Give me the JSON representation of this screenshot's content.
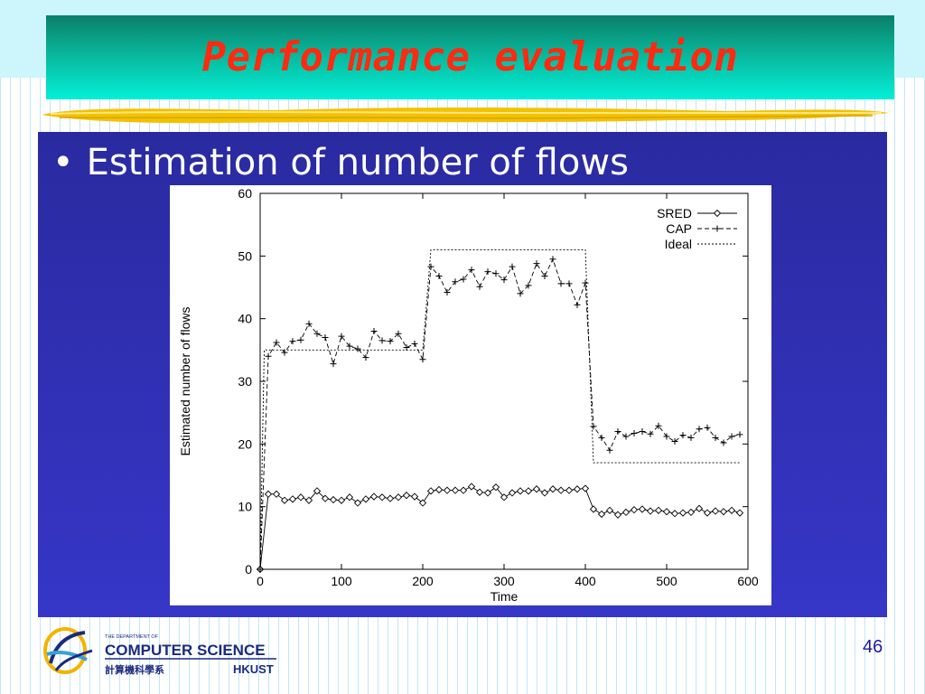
{
  "slide": {
    "title": "Performance evaluation",
    "bullet": "Estimation of number of flows",
    "page_number": "46"
  },
  "logo": {
    "line1": "THE DEPARTMENT OF",
    "line2": "COMPUTER SCIENCE",
    "line3": "計算機科學系",
    "line4": "HKUST"
  },
  "colors": {
    "title_text": "#ff2a10",
    "title_bar_top": "#0a7f6a",
    "title_bar_bottom": "#04f0d8",
    "content_bg": "#3030b8",
    "brush": "#f2c200"
  },
  "chart_data": {
    "type": "line",
    "xlabel": "Time",
    "ylabel": "Estimated number of flows",
    "xlim": [
      0,
      600
    ],
    "ylim": [
      0,
      60
    ],
    "xticks": [
      0,
      100,
      200,
      300,
      400,
      500,
      600
    ],
    "yticks": [
      0,
      10,
      20,
      30,
      40,
      50,
      60
    ],
    "grid": false,
    "legend_position": "top-right",
    "series": [
      {
        "name": "SRED",
        "marker": "diamond",
        "line": "solid",
        "x": [
          0,
          10,
          20,
          30,
          40,
          50,
          60,
          70,
          80,
          90,
          100,
          110,
          120,
          130,
          140,
          150,
          160,
          170,
          180,
          190,
          200,
          210,
          220,
          230,
          240,
          250,
          260,
          270,
          280,
          290,
          300,
          310,
          320,
          330,
          340,
          350,
          360,
          370,
          380,
          390,
          400,
          410,
          420,
          430,
          440,
          450,
          460,
          470,
          480,
          490,
          500,
          510,
          520,
          530,
          540,
          550,
          560,
          570,
          580,
          590
        ],
        "y": [
          0,
          12,
          12,
          11,
          11.2,
          11.5,
          11,
          12.5,
          11.3,
          11.1,
          11,
          11.5,
          10.6,
          11.2,
          11.6,
          11.5,
          11.3,
          11.5,
          11.8,
          11.6,
          10.6,
          12.5,
          12.7,
          12.6,
          12.6,
          12.6,
          13.2,
          12.3,
          12.2,
          13.1,
          11.5,
          12.2,
          12.5,
          12.5,
          12.8,
          12.2,
          12.8,
          12.6,
          12.6,
          12.8,
          12.9,
          9.6,
          8.8,
          9.4,
          8.7,
          9.1,
          9.5,
          9.6,
          9.3,
          9.4,
          9.2,
          8.9,
          9,
          9.1,
          9.7,
          9,
          9.3,
          9.2,
          9.4,
          9
        ]
      },
      {
        "name": "CAP",
        "marker": "plus",
        "line": "dashed",
        "x": [
          0,
          10,
          20,
          30,
          40,
          50,
          60,
          70,
          80,
          90,
          100,
          110,
          120,
          130,
          140,
          150,
          160,
          170,
          180,
          190,
          200,
          210,
          220,
          230,
          240,
          250,
          260,
          270,
          280,
          290,
          300,
          310,
          320,
          330,
          340,
          350,
          360,
          370,
          380,
          390,
          400,
          410,
          420,
          430,
          440,
          450,
          460,
          470,
          480,
          490,
          500,
          510,
          520,
          530,
          540,
          550,
          560,
          570,
          580,
          590
        ],
        "y": [
          0,
          34,
          36.2,
          34.6,
          36.4,
          36.6,
          39.2,
          37.6,
          37,
          32.8,
          37.2,
          35.6,
          35.2,
          33.8,
          38,
          36.5,
          36.4,
          37.6,
          35.4,
          36,
          33.5,
          48.3,
          46.8,
          44.2,
          45.9,
          46.3,
          47.8,
          45.1,
          47.5,
          47.2,
          46.2,
          48.3,
          44,
          45.3,
          48.8,
          46.8,
          49.5,
          45.6,
          45.6,
          42.2,
          45.7,
          22.8,
          21,
          19,
          22,
          21.2,
          21.7,
          22,
          21.6,
          22.9,
          21.2,
          20.4,
          21.4,
          21,
          22.4,
          22.6,
          21,
          20.2,
          21.2,
          21.5
        ]
      },
      {
        "name": "Ideal",
        "marker": "none",
        "line": "dotted",
        "x": [
          0,
          5,
          200,
          210,
          400,
          410,
          590
        ],
        "y": [
          0,
          35,
          35,
          51,
          51,
          17,
          17
        ]
      }
    ]
  }
}
